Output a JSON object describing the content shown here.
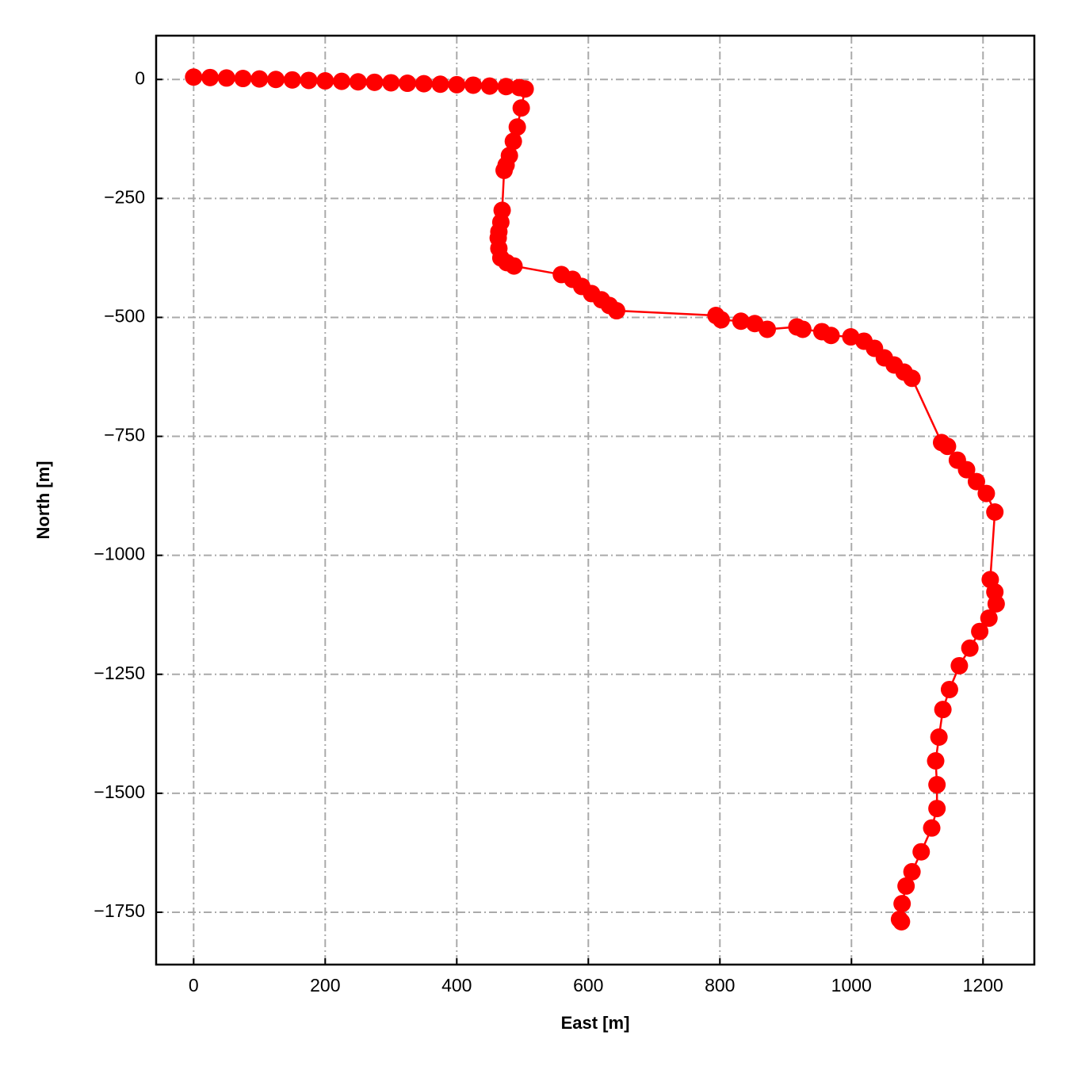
{
  "chart_data": {
    "type": "line",
    "x_label": "East [m]",
    "y_label": "North [m]",
    "color": "#ff0000",
    "grid": true,
    "markers": true,
    "xlim": [
      -57,
      1278
    ],
    "ylim": [
      -1860,
      92
    ],
    "xticks": [
      0,
      200,
      400,
      600,
      800,
      1000,
      1200
    ],
    "yticks": [
      0,
      {
        "value": -250,
        "label": "−250"
      },
      {
        "value": -500,
        "label": "−500"
      },
      {
        "value": -750,
        "label": "−750"
      },
      {
        "value": -1000,
        "label": "−1000"
      },
      {
        "value": -1250,
        "label": "−1250"
      },
      {
        "value": -1500,
        "label": "−1500"
      },
      {
        "value": -1750,
        "label": "−1750"
      }
    ],
    "x": [
      0,
      25,
      50,
      75,
      100,
      125,
      150,
      175,
      200,
      225,
      250,
      275,
      300,
      325,
      350,
      375,
      400,
      425,
      450,
      475,
      495,
      504,
      498,
      492,
      486,
      480,
      475,
      472,
      469,
      467,
      464,
      463,
      464,
      467,
      476,
      487,
      559,
      576,
      590,
      605,
      620,
      632,
      643,
      794,
      802,
      832,
      853,
      872,
      917,
      926,
      955,
      969,
      999,
      1019,
      1035,
      1050,
      1065,
      1080,
      1092,
      1137,
      1146,
      1161,
      1175,
      1190,
      1205,
      1218,
      1211,
      1218,
      1220,
      1209,
      1195,
      1180,
      1164,
      1149,
      1139,
      1133,
      1128,
      1130,
      1130,
      1122,
      1106,
      1092,
      1083,
      1077,
      1073,
      1076
    ],
    "values": [
      5,
      4,
      3,
      2,
      1,
      0,
      -1,
      -2,
      -3,
      -4,
      -5,
      -6,
      -7,
      -8,
      -9,
      -10,
      -11,
      -12,
      -14,
      -15,
      -17,
      -20,
      -60,
      -100,
      -130,
      -160,
      -180,
      -191,
      -275,
      -300,
      -320,
      -333,
      -355,
      -375,
      -385,
      -392,
      -410,
      -420,
      -435,
      -450,
      -463,
      -475,
      -486,
      -496,
      -505,
      -508,
      -513,
      -525,
      -520,
      -525,
      -530,
      -538,
      -541,
      -550,
      -565,
      -585,
      -600,
      -615,
      -628,
      -763,
      -771,
      -800,
      -820,
      -845,
      -870,
      -909,
      -1051,
      -1077,
      -1102,
      -1132,
      -1160,
      -1195,
      -1232,
      -1282,
      -1324,
      -1382,
      -1432,
      -1482,
      -1532,
      -1573,
      -1623,
      -1665,
      -1695,
      -1732,
      -1765,
      -1770
    ]
  }
}
